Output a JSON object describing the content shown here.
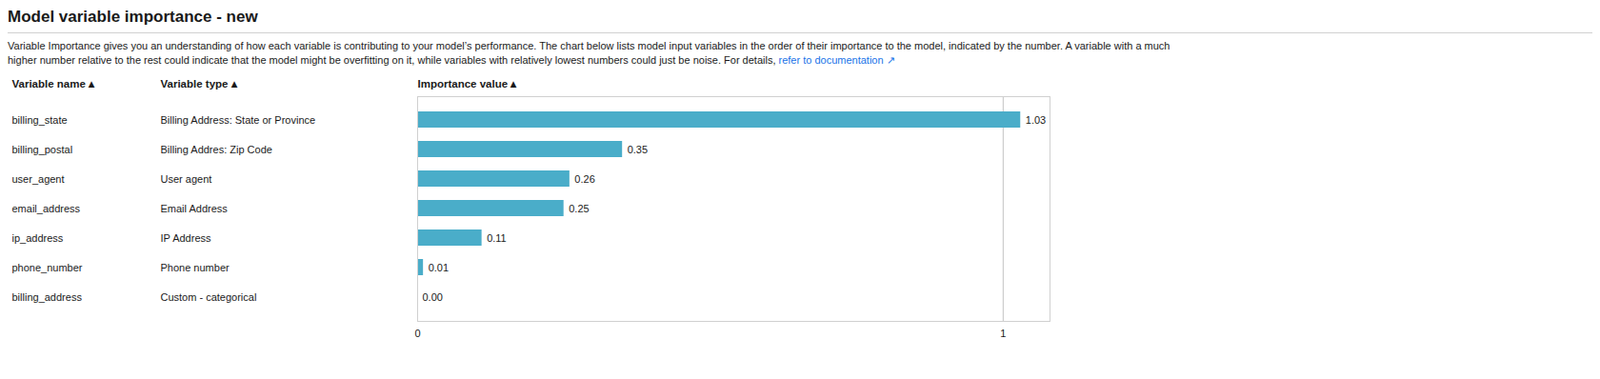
{
  "chart_data": {
    "type": "bar",
    "orientation": "horizontal",
    "title": "Model variable importance - new",
    "subtitle": [
      "Variable Importance gives you an understanding of how each variable is contributing to your model’s performance. The chart below lists model input variables in the order of their importance to the model, indicated by the number. A variable with a much",
      "higher number relative to the rest could indicate that the model might be overfitting on it, while variables with relatively lowest numbers could just be noise. For details, "
    ],
    "annotations": [
      {
        "text": "refer to documentation ↗",
        "color": "#1a73e8"
      },
      {
        "header": "Variable type ▴",
        "texts": [
          "Billing Address: State or Province",
          "Billing Addres: Zip Code",
          "User agent",
          "Email Address",
          "IP Address",
          "Phone number",
          "Custom - categorical"
        ]
      }
    ],
    "y_label": "Variable name ▴",
    "x_label": "Importance value ▴",
    "categories": [
      "billing_state",
      "billing_postal",
      "user_agent",
      "email_address",
      "ip_address",
      "phone_number",
      "billing_address"
    ],
    "values": [
      1.03,
      0.35,
      0.26,
      0.25,
      0.11,
      0.01,
      0.0
    ],
    "value_labels": [
      "1.03",
      "0.35",
      "0.26",
      "0.25",
      "0.11",
      "0.01",
      "0.00"
    ],
    "data_labels": true,
    "color": "#4aadc9",
    "xlim": [
      0,
      1.08
    ],
    "xticks": [
      0,
      1
    ],
    "grid": true
  }
}
